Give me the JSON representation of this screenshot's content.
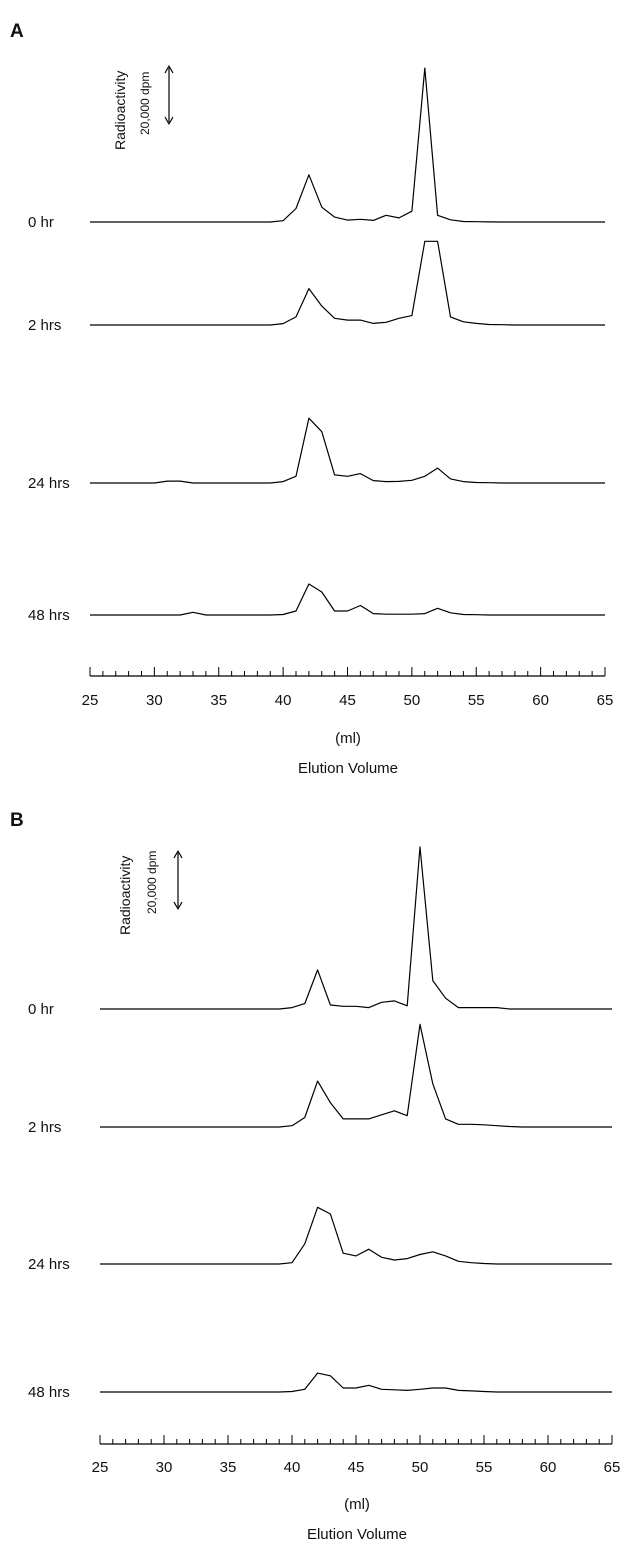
{
  "chart_data": [
    {
      "type": "line",
      "panel": "A",
      "scale_bar": {
        "title": "Radioactivity",
        "label": "20,000 dpm",
        "value": 20000
      },
      "x": [
        25,
        26,
        27,
        28,
        29,
        30,
        31,
        32,
        33,
        34,
        35,
        36,
        37,
        38,
        39,
        40,
        41,
        42,
        43,
        44,
        45,
        46,
        47,
        48,
        49,
        50,
        51,
        52,
        53,
        54,
        55,
        56,
        57,
        58,
        59,
        60,
        61,
        62,
        63,
        64,
        65
      ],
      "xlim": [
        25,
        65
      ],
      "xticks": [
        25,
        30,
        35,
        40,
        45,
        50,
        55,
        60,
        65
      ],
      "xlabel": "(ml)",
      "xlabel2": "Elution Volume",
      "series": [
        {
          "name": "0 hr",
          "values": [
            0,
            0,
            0,
            0,
            0,
            0,
            0,
            0,
            0,
            0,
            0,
            0,
            0,
            0,
            0,
            500,
            5000,
            17500,
            5500,
            1800,
            700,
            1000,
            600,
            2500,
            1500,
            4000,
            57000,
            2500,
            800,
            200,
            100,
            50,
            0,
            0,
            0,
            0,
            0,
            0,
            0,
            0,
            0
          ]
        },
        {
          "name": "2 hrs",
          "values": [
            0,
            0,
            0,
            0,
            0,
            0,
            0,
            0,
            0,
            0,
            0,
            0,
            0,
            0,
            0,
            500,
            3000,
            13500,
            7000,
            2500,
            1800,
            1800,
            600,
            1000,
            2500,
            3500,
            31000,
            31000,
            3000,
            1200,
            600,
            200,
            100,
            0,
            0,
            0,
            0,
            0,
            0,
            0,
            0
          ]
        },
        {
          "name": "24 hrs",
          "values": [
            0,
            0,
            0,
            0,
            0,
            0,
            700,
            700,
            0,
            0,
            0,
            0,
            0,
            0,
            0,
            500,
            2500,
            24000,
            19000,
            3000,
            2500,
            3500,
            900,
            500,
            600,
            1000,
            2500,
            5500,
            1500,
            500,
            200,
            100,
            0,
            0,
            0,
            0,
            0,
            0,
            0,
            0,
            0
          ]
        },
        {
          "name": "48 hrs",
          "values": [
            0,
            0,
            0,
            0,
            0,
            0,
            0,
            0,
            1000,
            0,
            0,
            0,
            0,
            0,
            0,
            200,
            1500,
            11500,
            8500,
            1500,
            1500,
            3500,
            500,
            300,
            300,
            300,
            500,
            2500,
            800,
            200,
            100,
            0,
            0,
            0,
            0,
            0,
            0,
            0,
            0,
            0,
            0
          ]
        }
      ]
    },
    {
      "type": "line",
      "panel": "B",
      "scale_bar": {
        "title": "Radioactivity",
        "label": "20,000 dpm",
        "value": 20000
      },
      "x": [
        25,
        26,
        27,
        28,
        29,
        30,
        31,
        32,
        33,
        34,
        35,
        36,
        37,
        38,
        39,
        40,
        41,
        42,
        43,
        44,
        45,
        46,
        47,
        48,
        49,
        50,
        51,
        52,
        53,
        54,
        55,
        56,
        57,
        58,
        59,
        60,
        61,
        62,
        63,
        64,
        65
      ],
      "xlim": [
        25,
        65
      ],
      "xticks": [
        25,
        30,
        35,
        40,
        45,
        50,
        55,
        60,
        65
      ],
      "xlabel": "(ml)",
      "xlabel2": "Elution Volume",
      "series": [
        {
          "name": "0 hr",
          "values": [
            0,
            0,
            0,
            0,
            0,
            0,
            0,
            0,
            0,
            0,
            0,
            0,
            0,
            0,
            0,
            500,
            2000,
            14500,
            1500,
            1000,
            1000,
            500,
            2500,
            3000,
            1200,
            60000,
            10500,
            4000,
            500,
            500,
            500,
            500,
            0,
            0,
            0,
            0,
            0,
            0,
            0,
            0,
            0
          ]
        },
        {
          "name": "2 hrs",
          "values": [
            0,
            0,
            0,
            0,
            0,
            0,
            0,
            0,
            0,
            0,
            0,
            0,
            0,
            0,
            0,
            500,
            3500,
            17000,
            9000,
            3000,
            3000,
            3000,
            4500,
            6000,
            4200,
            38000,
            16000,
            3000,
            1000,
            1000,
            800,
            500,
            200,
            0,
            0,
            0,
            0,
            0,
            0,
            0,
            0
          ]
        },
        {
          "name": "24 hrs",
          "values": [
            0,
            0,
            0,
            0,
            0,
            0,
            0,
            0,
            0,
            0,
            0,
            0,
            0,
            0,
            0,
            500,
            7500,
            21000,
            18500,
            4000,
            3000,
            5500,
            2500,
            1500,
            2000,
            3500,
            4500,
            3000,
            1000,
            500,
            200,
            0,
            0,
            0,
            0,
            0,
            0,
            0,
            0,
            0,
            0
          ]
        },
        {
          "name": "48 hrs",
          "values": [
            0,
            0,
            0,
            0,
            0,
            0,
            0,
            0,
            0,
            0,
            0,
            0,
            0,
            0,
            0,
            200,
            1000,
            7000,
            6000,
            1500,
            1500,
            2500,
            1000,
            800,
            600,
            1000,
            1500,
            1500,
            600,
            400,
            200,
            0,
            0,
            0,
            0,
            0,
            0,
            0,
            0,
            0,
            0
          ]
        }
      ]
    }
  ]
}
